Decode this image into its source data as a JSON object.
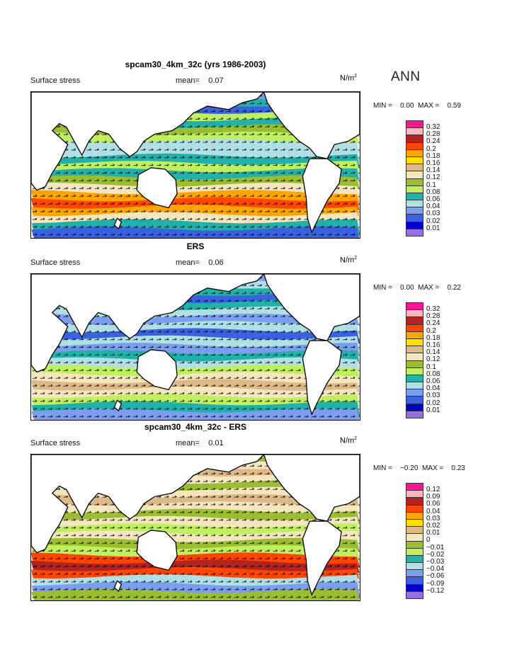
{
  "season_label": "ANN",
  "colors": [
    "#ff1493",
    "#ffb6c1",
    "#b22222",
    "#ff4500",
    "#ffa500",
    "#ffe000",
    "#deb887",
    "#f5e6c0",
    "#9abd32",
    "#c0f060",
    "#20b2aa",
    "#b0e0e6",
    "#7b9ef0",
    "#3a62e0",
    "#0000c8",
    "#9370db"
  ],
  "panels": [
    {
      "title": "spcam30_4km_32c (yrs 1986-2003)",
      "variable": "Surface stress",
      "mean_label": "mean=",
      "mean": "0.07",
      "units": "N/m",
      "units_exp": "2",
      "min_label": "MIN =",
      "min": "0.00",
      "max_label": "MAX =",
      "max": "0.59",
      "levels": [
        "0.32",
        "0.28",
        "0.24",
        "0.2",
        "0.18",
        "0.16",
        "0.14",
        "0.12",
        "0.1",
        "0.08",
        "0.06",
        "0.04",
        "0.03",
        "0.02",
        "0.01"
      ],
      "bands": [
        12,
        10,
        13,
        9,
        10,
        8,
        9,
        11,
        11,
        10,
        9,
        10,
        8,
        7,
        4,
        3,
        4,
        7,
        10,
        13
      ]
    },
    {
      "title": "ERS",
      "variable": "Surface stress",
      "mean_label": "mean=",
      "mean": "0.06",
      "units": "N/m",
      "units_exp": "2",
      "min_label": "MIN =",
      "min": "0.00",
      "max_label": "MAX =",
      "max": "0.22",
      "levels": [
        "0.32",
        "0.28",
        "0.24",
        "0.2",
        "0.18",
        "0.16",
        "0.14",
        "0.12",
        "0.1",
        "0.08",
        "0.06",
        "0.04",
        "0.03",
        "0.02",
        "0.01"
      ],
      "bands": [
        12,
        11,
        10,
        13,
        10,
        11,
        12,
        11,
        13,
        11,
        12,
        10,
        11,
        9,
        7,
        6,
        7,
        9,
        10,
        12
      ]
    },
    {
      "title": "spcam30_4km_32c - ERS",
      "variable": "Surface stress",
      "mean_label": "mean=",
      "mean": "0.01",
      "units": "N/m",
      "units_exp": "2",
      "min_label": "MIN =",
      "min": "−0.20",
      "max_label": "MAX =",
      "max": "0.23",
      "levels": [
        "0.12",
        "0.09",
        "0.06",
        "0.04",
        "0.03",
        "0.02",
        "0.01",
        "0",
        "−0.01",
        "−0.02",
        "−0.03",
        "−0.04",
        "−0.06",
        "−0.09",
        "−0.12"
      ],
      "bands": [
        8,
        7,
        6,
        7,
        8,
        7,
        6,
        7,
        8,
        7,
        9,
        7,
        8,
        9,
        3,
        2,
        3,
        11,
        12,
        8
      ]
    }
  ]
}
